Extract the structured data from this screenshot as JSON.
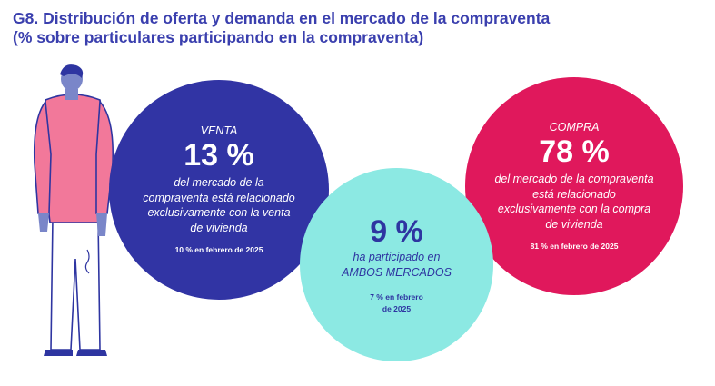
{
  "title_line1": "G8. Distribución de oferta y demanda en el mercado de la compraventa",
  "title_line2": "(% sobre particulares participando en la compraventa)",
  "colors": {
    "venta": "#3134a4",
    "compra": "#e0185c",
    "ambos": "#8ce9e3",
    "title": "#3a3fae"
  },
  "icons": {
    "person": "person-illustration"
  },
  "chart_data": {
    "type": "venn",
    "segments": [
      {
        "name": "VENTA",
        "value_label": "13 %",
        "value": 13,
        "description": [
          "del mercado de la",
          "compraventa está relacionado",
          "exclusivamente con la venta",
          "de vivienda"
        ],
        "previous": "10 % en febrero de 2025",
        "previous_value": 10
      },
      {
        "name": "COMPRA",
        "value_label": "78 %",
        "value": 78,
        "description": [
          "del mercado de la compraventa",
          "está relacionado",
          "exclusivamente con la compra",
          "de vivienda"
        ],
        "previous": "81 % en febrero de 2025",
        "previous_value": 81
      },
      {
        "name": "",
        "value_label": "9 %",
        "value": 9,
        "description": [
          "ha participado en",
          "AMBOS MERCADOS"
        ],
        "previous_lines": [
          "7 % en febrero",
          "de 2025"
        ],
        "previous_value": 7
      }
    ]
  }
}
